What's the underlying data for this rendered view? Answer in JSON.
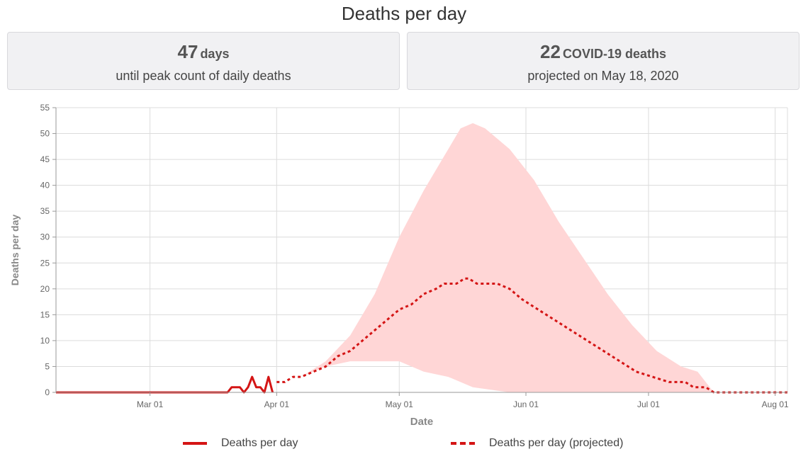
{
  "title": "Deaths per day",
  "cards": [
    {
      "number": "47",
      "unit": "days",
      "subtitle": "until peak count of daily deaths"
    },
    {
      "number": "22",
      "unit": "COVID-19 deaths",
      "subtitle": "projected on May 18, 2020"
    }
  ],
  "colors": {
    "line": "#d41515",
    "band": "#ffd6d6",
    "grid": "#dcdcdc",
    "axis_text": "#666666",
    "axis_title": "#888888"
  },
  "chart_data": {
    "type": "line",
    "title": "Deaths per day",
    "xlabel": "Date",
    "ylabel": "Deaths per day",
    "ylim": [
      0,
      55
    ],
    "xlim": [
      "2020-02-07",
      "2020-08-04"
    ],
    "y_ticks": [
      0,
      5,
      10,
      15,
      20,
      25,
      30,
      35,
      40,
      45,
      50,
      55
    ],
    "x_ticks": [
      {
        "date": "2020-03-01",
        "label": "Mar 01"
      },
      {
        "date": "2020-04-01",
        "label": "Apr 01"
      },
      {
        "date": "2020-05-01",
        "label": "May 01"
      },
      {
        "date": "2020-06-01",
        "label": "Jun 01"
      },
      {
        "date": "2020-07-01",
        "label": "Jul 01"
      },
      {
        "date": "2020-08-01",
        "label": "Aug 01"
      }
    ],
    "grid": true,
    "legend_position": "bottom",
    "series": [
      {
        "name": "Deaths per day",
        "style": "solid",
        "points": [
          [
            "2020-02-07",
            0
          ],
          [
            "2020-03-20",
            0
          ],
          [
            "2020-03-21",
            1
          ],
          [
            "2020-03-23",
            1
          ],
          [
            "2020-03-24",
            0
          ],
          [
            "2020-03-25",
            1
          ],
          [
            "2020-03-26",
            3
          ],
          [
            "2020-03-27",
            1
          ],
          [
            "2020-03-28",
            1
          ],
          [
            "2020-03-29",
            0
          ],
          [
            "2020-03-30",
            3
          ],
          [
            "2020-03-31",
            0
          ]
        ]
      },
      {
        "name": "Deaths per day (projected)",
        "style": "dashed",
        "points": [
          [
            "2020-04-01",
            2
          ],
          [
            "2020-04-03",
            2
          ],
          [
            "2020-04-05",
            3
          ],
          [
            "2020-04-07",
            3
          ],
          [
            "2020-04-10",
            4
          ],
          [
            "2020-04-13",
            5
          ],
          [
            "2020-04-16",
            7
          ],
          [
            "2020-04-19",
            8
          ],
          [
            "2020-04-22",
            10
          ],
          [
            "2020-04-25",
            12
          ],
          [
            "2020-04-28",
            14
          ],
          [
            "2020-05-01",
            16
          ],
          [
            "2020-05-04",
            17
          ],
          [
            "2020-05-07",
            19
          ],
          [
            "2020-05-10",
            20
          ],
          [
            "2020-05-12",
            21
          ],
          [
            "2020-05-15",
            21
          ],
          [
            "2020-05-17",
            22
          ],
          [
            "2020-05-18",
            22
          ],
          [
            "2020-05-20",
            21
          ],
          [
            "2020-05-25",
            21
          ],
          [
            "2020-05-28",
            20
          ],
          [
            "2020-05-31",
            18
          ],
          [
            "2020-06-04",
            16
          ],
          [
            "2020-06-08",
            14
          ],
          [
            "2020-06-12",
            12
          ],
          [
            "2020-06-16",
            10
          ],
          [
            "2020-06-20",
            8
          ],
          [
            "2020-06-24",
            6
          ],
          [
            "2020-06-28",
            4
          ],
          [
            "2020-07-02",
            3
          ],
          [
            "2020-07-06",
            2
          ],
          [
            "2020-07-10",
            2
          ],
          [
            "2020-07-12",
            1
          ],
          [
            "2020-07-15",
            1
          ],
          [
            "2020-07-17",
            0
          ],
          [
            "2020-08-04",
            0
          ]
        ]
      }
    ],
    "uncertainty_band": {
      "upper": [
        [
          "2020-04-01",
          2
        ],
        [
          "2020-04-07",
          3
        ],
        [
          "2020-04-13",
          6
        ],
        [
          "2020-04-19",
          11
        ],
        [
          "2020-04-25",
          19
        ],
        [
          "2020-05-01",
          30
        ],
        [
          "2020-05-07",
          39
        ],
        [
          "2020-05-13",
          47
        ],
        [
          "2020-05-16",
          51
        ],
        [
          "2020-05-19",
          52
        ],
        [
          "2020-05-22",
          51
        ],
        [
          "2020-05-28",
          47
        ],
        [
          "2020-06-03",
          41
        ],
        [
          "2020-06-09",
          33
        ],
        [
          "2020-06-15",
          26
        ],
        [
          "2020-06-21",
          19
        ],
        [
          "2020-06-27",
          13
        ],
        [
          "2020-07-03",
          8
        ],
        [
          "2020-07-09",
          5
        ],
        [
          "2020-07-13",
          4
        ],
        [
          "2020-07-16",
          1
        ],
        [
          "2020-07-17",
          0
        ]
      ],
      "lower": [
        [
          "2020-04-01",
          2
        ],
        [
          "2020-04-07",
          3
        ],
        [
          "2020-04-13",
          5
        ],
        [
          "2020-04-19",
          6
        ],
        [
          "2020-05-01",
          6
        ],
        [
          "2020-05-07",
          4
        ],
        [
          "2020-05-13",
          3
        ],
        [
          "2020-05-19",
          1
        ],
        [
          "2020-05-28",
          0
        ],
        [
          "2020-07-17",
          0
        ]
      ]
    }
  }
}
